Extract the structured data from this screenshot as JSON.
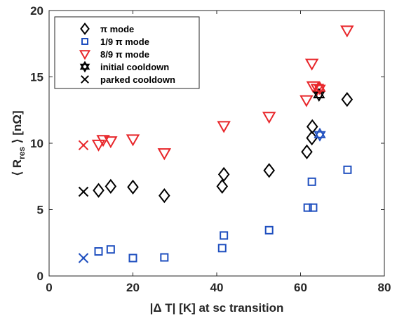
{
  "chart_data": {
    "type": "scatter",
    "xlabel": "|Δ T| [K] at sc transition",
    "ylabel_parts": {
      "pre": "⟨ R",
      "sub": "res",
      "post": " ⟩ [nΩ]"
    },
    "xlim": [
      0,
      80
    ],
    "ylim": [
      0,
      20
    ],
    "xticks": [
      0,
      20,
      40,
      60,
      80
    ],
    "yticks": [
      0,
      5,
      10,
      15,
      20
    ],
    "grid": false,
    "legend_position": "top-left",
    "series": [
      {
        "name": "π mode",
        "marker": "diamond",
        "color": "#000000",
        "points": [
          [
            11.8,
            6.45
          ],
          [
            14.7,
            6.75
          ],
          [
            20.0,
            6.7
          ],
          [
            27.5,
            6.05
          ],
          [
            41.3,
            6.75
          ],
          [
            41.7,
            7.65
          ],
          [
            52.5,
            7.95
          ],
          [
            61.5,
            9.35
          ],
          [
            62.7,
            10.4
          ],
          [
            62.8,
            11.25
          ],
          [
            71.1,
            13.3
          ]
        ]
      },
      {
        "name": "1/9 π mode",
        "marker": "square",
        "color": "#1f4fbf",
        "points": [
          [
            11.8,
            1.85
          ],
          [
            14.7,
            2.0
          ],
          [
            20.0,
            1.35
          ],
          [
            27.5,
            1.4
          ],
          [
            41.3,
            2.1
          ],
          [
            41.7,
            3.05
          ],
          [
            52.5,
            3.45
          ],
          [
            61.7,
            5.15
          ],
          [
            62.7,
            7.1
          ],
          [
            63.0,
            5.15
          ],
          [
            71.2,
            8.0
          ]
        ]
      },
      {
        "name": "8/9 π mode",
        "marker": "triangle-down",
        "color": "#e8262a",
        "points": [
          [
            11.8,
            9.9
          ],
          [
            12.9,
            10.25
          ],
          [
            14.7,
            10.15
          ],
          [
            20.0,
            10.3
          ],
          [
            27.5,
            9.25
          ],
          [
            41.7,
            11.3
          ],
          [
            52.5,
            12.0
          ],
          [
            61.4,
            13.25
          ],
          [
            62.7,
            16.0
          ],
          [
            63.0,
            14.3
          ],
          [
            64.0,
            14.1
          ],
          [
            71.1,
            18.5
          ]
        ]
      },
      {
        "name": "initial cooldown",
        "marker": "hexagram",
        "points": [
          {
            "x": 64.4,
            "y": 13.65,
            "color": "#000000"
          },
          {
            "x": 64.6,
            "y": 14.15,
            "color": "#e8262a"
          },
          {
            "x": 64.6,
            "y": 10.65,
            "color": "#1f4fbf"
          }
        ]
      },
      {
        "name": "parked cooldown",
        "marker": "x",
        "points": [
          {
            "x": 8.2,
            "y": 6.35,
            "color": "#000000"
          },
          {
            "x": 8.2,
            "y": 9.85,
            "color": "#e8262a"
          },
          {
            "x": 8.2,
            "y": 1.35,
            "color": "#1f4fbf"
          }
        ]
      }
    ],
    "legend": [
      {
        "label": "π mode",
        "marker": "diamond",
        "color": "#000000"
      },
      {
        "label": "1/9 π mode",
        "marker": "square",
        "color": "#1f4fbf"
      },
      {
        "label": "8/9 π mode",
        "marker": "triangle-down",
        "color": "#e8262a"
      },
      {
        "label": "initial cooldown",
        "marker": "hexagram",
        "color": "#000000"
      },
      {
        "label": "parked cooldown",
        "marker": "x",
        "color": "#000000"
      }
    ]
  }
}
